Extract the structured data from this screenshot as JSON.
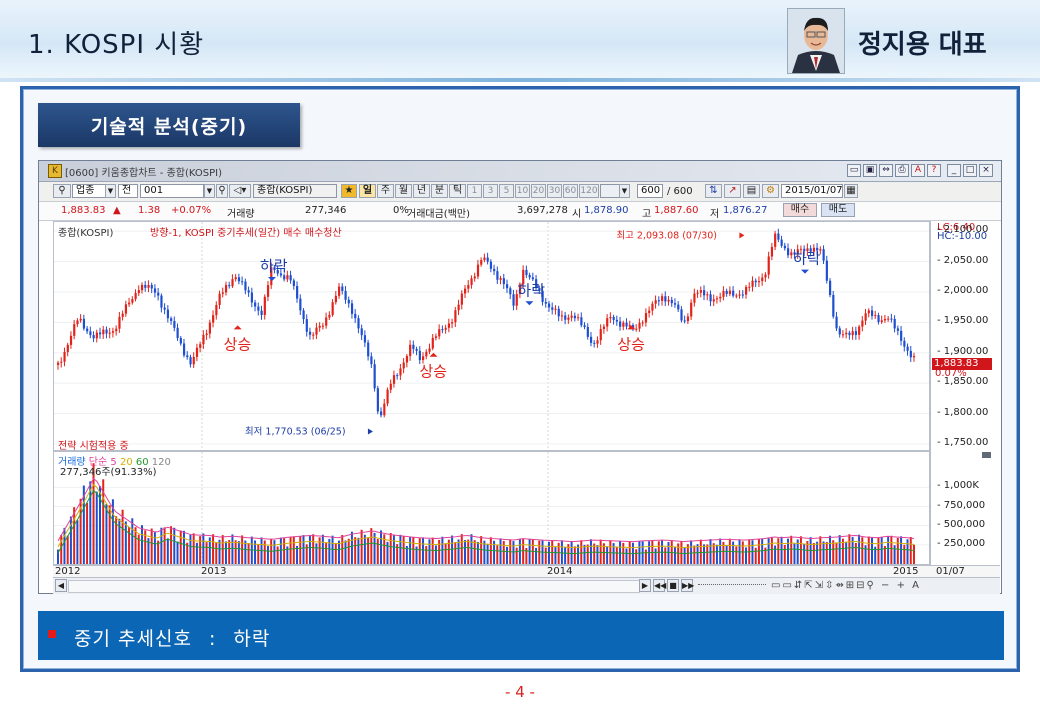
{
  "header": {
    "title": "1. KOSPI 시황",
    "presenter": "정지용 대표"
  },
  "section_tag": "기술적 분석(중기)",
  "window": {
    "title": "[0600] 키움종합차트 - 종합(KOSPI)",
    "toolbar1": {
      "type_select": "업종",
      "range_select": "전",
      "code_input": "001",
      "name_field": "종합(KOSPI)",
      "periods": [
        "일",
        "주",
        "월",
        "년",
        "분",
        "틱"
      ],
      "minute_options": [
        "1",
        "3",
        "5",
        "10",
        "20",
        "30",
        "60",
        "120"
      ],
      "count_input": "600",
      "count_total": "/ 600",
      "date_field": "2015/01/07"
    },
    "toolbar2": {
      "price": "1,883.83",
      "change_arrow": "▲",
      "change": "1.38",
      "change_pct": "+0.07%",
      "volume_label": "거래량",
      "volume": "277,346",
      "zero_pct": "0%",
      "amount_label": "거래대금(백만)",
      "amount": "3,697,278",
      "open_label": "시",
      "open": "1,878.90",
      "high_label": "고",
      "high": "1,887.60",
      "low_label": "저",
      "low": "1,876.27",
      "buy_btn": "매수",
      "sell_btn": "매도"
    },
    "price_legend": {
      "series": "종합(KOSPI)",
      "indicator": "방향-1, KOSPI 중기추세(일간) 매수 매수청산",
      "strategy_note": "전략 시험적용 중"
    },
    "y_axis_info": {
      "lc": "LC:6.40",
      "hc": "HC:-10.00"
    },
    "volume_legend": {
      "label": "거래량",
      "ma_label": "단순",
      "ma": [
        "5",
        "20",
        "60",
        "120"
      ],
      "value": "277,346주(91.33%)",
      "colors": [
        "#e0439a",
        "#d2b106",
        "#1f9a2b",
        "#888888"
      ]
    },
    "current_price_tag": "1,883.83",
    "current_pct_tag": "0.07%",
    "x_axis_labels": [
      "2012",
      "2013",
      "2014",
      "2015",
      "01/07"
    ]
  },
  "chart_data": {
    "type": "candlestick",
    "title": "",
    "y_ticks": [
      "2,100.00",
      "2,050.00",
      "2,000.00",
      "1,950.00",
      "1,900.00",
      "1,850.00",
      "1,800.00",
      "1,750.00"
    ],
    "ylim": [
      1740,
      2115
    ],
    "volume_ticks": [
      "1,000K",
      "750,000",
      "500,000",
      "250,000"
    ],
    "volume_ylim": [
      0,
      1200000
    ],
    "x": [
      0,
      20,
      36,
      56,
      80,
      98,
      108,
      120,
      132,
      150,
      160,
      175,
      188,
      202,
      212,
      230,
      250,
      262,
      278,
      292,
      312,
      318,
      330,
      350,
      358,
      374,
      392,
      405,
      420,
      440,
      452,
      460,
      480,
      498,
      510,
      530,
      548,
      570,
      580,
      600,
      610,
      620,
      630,
      646,
      660,
      680,
      700,
      710,
      715,
      728,
      746,
      756,
      772,
      780,
      790,
      800,
      812,
      822,
      830,
      842,
      850
    ],
    "close": [
      1880,
      1955,
      1925,
      1940,
      2010,
      2000,
      1960,
      1920,
      1880,
      1950,
      1990,
      2030,
      1995,
      1965,
      2040,
      2020,
      1925,
      1945,
      2005,
      1970,
      1870,
      1790,
      1850,
      1910,
      1890,
      1925,
      1960,
      2010,
      2055,
      2020,
      1975,
      2040,
      1990,
      1955,
      1965,
      1915,
      1960,
      1935,
      1960,
      1995,
      1980,
      1945,
      2000,
      1990,
      1995,
      2000,
      2030,
      2090,
      2082,
      2060,
      2075,
      2065,
      1935,
      1925,
      1935,
      1965,
      1955,
      1960,
      1935,
      1905,
      1883.83
    ],
    "volume": [
      250000,
      700000,
      1080000,
      640000,
      420000,
      360000,
      430000,
      380000,
      330000,
      320000,
      300000,
      310000,
      290000,
      280000,
      270000,
      300000,
      320000,
      310000,
      290000,
      340000,
      380000,
      360000,
      330000,
      300000,
      290000,
      280000,
      300000,
      320000,
      290000,
      270000,
      260000,
      280000,
      260000,
      250000,
      240000,
      260000,
      250000,
      240000,
      250000,
      260000,
      250000,
      240000,
      250000,
      260000,
      270000,
      260000,
      280000,
      300000,
      290000,
      300000,
      280000,
      290000,
      300000,
      310000,
      320000,
      300000,
      290000,
      310000,
      300000,
      290000,
      277346
    ],
    "annotations": [
      {
        "text": "상승",
        "kind": "buy",
        "x": 178,
        "y": 1945
      },
      {
        "text": "하락",
        "kind": "sell",
        "x": 212,
        "y": 2018
      },
      {
        "text": "상승",
        "kind": "buy",
        "x": 372,
        "y": 1900
      },
      {
        "text": "하락",
        "kind": "sell",
        "x": 467,
        "y": 1978
      },
      {
        "text": "상승",
        "kind": "buy",
        "x": 568,
        "y": 1945
      },
      {
        "text": "하락",
        "kind": "sell",
        "x": 740,
        "y": 2030
      }
    ],
    "extremes": [
      {
        "text": "최고 2,093.08 (07/30)",
        "x": 680,
        "y": 2093.08
      },
      {
        "text": "최저 1,770.53 (06/25)",
        "x": 312,
        "y": 1770.53
      }
    ]
  },
  "signal": {
    "label": "중기 추세신호",
    "separator": ":",
    "value": "하락"
  },
  "page_number": "- 4 -"
}
